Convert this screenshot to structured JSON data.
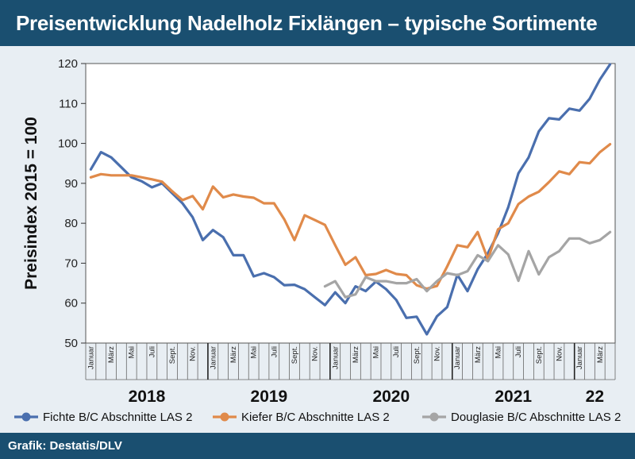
{
  "title": "Preisentwicklung Nadelholz Fixlängen – typische Sortimente",
  "footer": "Grafik: Destatis/DLV",
  "chart_data": {
    "type": "line",
    "ylabel": "Preisindex 2015 = 100",
    "ylim": [
      50,
      120
    ],
    "yticks": [
      50,
      60,
      70,
      80,
      90,
      100,
      110,
      120
    ],
    "month_labels": [
      "Januar",
      "März",
      "Mai",
      "Juli",
      "Sept.",
      "Nov."
    ],
    "years": [
      "2018",
      "2019",
      "2020",
      "2021",
      "22"
    ],
    "grid": false,
    "legend_position": "bottom",
    "x_start": "2018-01",
    "series": [
      {
        "name": "Fichte B/C Abschnitte LAS 2",
        "color": "#4a6fae",
        "start_index": 0,
        "values": [
          93.5,
          97.8,
          96.5,
          94,
          91.5,
          90.5,
          89,
          90,
          87.5,
          85,
          81.5,
          75.8,
          78.3,
          76.5,
          72,
          72,
          66.7,
          67.5,
          66.5,
          64.5,
          64.6,
          63.5,
          61.5,
          59.5,
          62.7,
          60,
          64.2,
          63,
          65.4,
          63.5,
          60.8,
          56.3,
          56.6,
          52.2,
          56.7,
          59,
          67.1,
          63,
          68.5,
          72.5,
          77.5,
          84,
          92.5,
          96.5,
          103,
          106.3,
          106,
          108.7,
          108.2,
          111.2,
          116,
          119.8
        ]
      },
      {
        "name": "Kiefer B/C Abschnitte LAS 2",
        "color": "#e08a4a",
        "start_index": 0,
        "values": [
          91.5,
          92.3,
          92,
          92,
          92,
          91.5,
          91,
          90.4,
          88,
          85.8,
          86.8,
          83.5,
          89.2,
          86.5,
          87.2,
          86.7,
          86.4,
          85,
          85,
          81,
          75.8,
          82,
          80.8,
          79.6,
          74.5,
          69.6,
          71.5,
          67,
          67.3,
          68.3,
          67.3,
          67,
          64.5,
          63.6,
          64.3,
          69.2,
          74.5,
          74,
          77.8,
          71,
          78.5,
          80,
          84.8,
          86.7,
          87.9,
          90.3,
          93,
          92.3,
          95.3,
          95,
          97.8,
          99.8
        ]
      },
      {
        "name": "Douglasie B/C Abschnitte LAS 2",
        "color": "#a5a5a5",
        "start_index": 23,
        "values": [
          64.2,
          65.5,
          61.5,
          62.2,
          66.5,
          65.5,
          65.5,
          65,
          65,
          66,
          63,
          65.5,
          67.5,
          67,
          68,
          72,
          70.5,
          74.5,
          72.2,
          65.6,
          73,
          67.2,
          71.5,
          73,
          76.2,
          76.2,
          75,
          75.8,
          77.8
        ]
      }
    ]
  }
}
